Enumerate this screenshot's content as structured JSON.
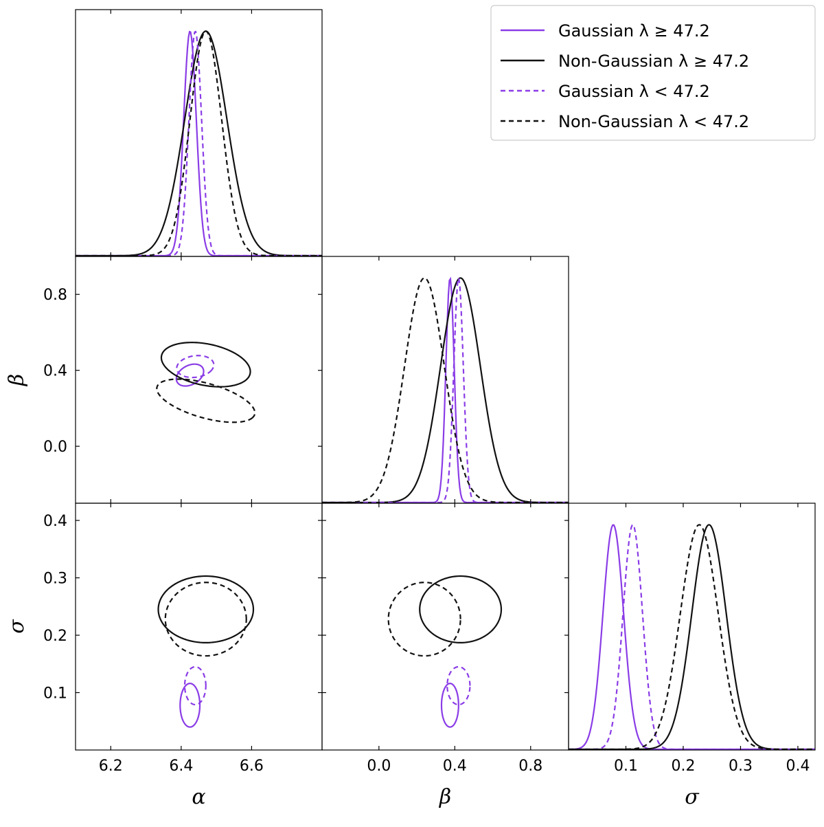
{
  "chart_data": {
    "type": "corner",
    "parameters": [
      {
        "key": "alpha",
        "label": "α",
        "range": [
          6.1,
          6.8
        ],
        "ticks": [
          "6.2",
          "6.4",
          "6.6"
        ],
        "tick_values": [
          6.2,
          6.4,
          6.6
        ]
      },
      {
        "key": "beta",
        "label": "β",
        "range": [
          -0.3,
          1.0
        ],
        "ticks": [
          "0.0",
          "0.4",
          "0.8"
        ],
        "tick_values": [
          0.0,
          0.4,
          0.8
        ]
      },
      {
        "key": "sigma",
        "label": "σ",
        "range": [
          0.0,
          0.43
        ],
        "ticks": [
          "0.1",
          "0.2",
          "0.3",
          "0.4"
        ],
        "tick_values": [
          0.1,
          0.2,
          0.3,
          0.4
        ]
      }
    ],
    "legend": {
      "placement": "top-right",
      "entries": [
        {
          "label": "Gaussian λ  ≥  47.2",
          "color": "#8a3ce6",
          "dash": "solid"
        },
        {
          "label": "Non-Gaussian λ  ≥  47.2",
          "color": "#111111",
          "dash": "solid"
        },
        {
          "label": "Gaussian λ < 47.2",
          "color": "#8a3ce6",
          "dash": "dashed"
        },
        {
          "label": "Non-Gaussian λ < 47.2",
          "color": "#111111",
          "dash": "dashed"
        }
      ]
    },
    "series": [
      {
        "id": "g-high",
        "color": "#8a3ce6",
        "dash": "solid",
        "mean": {
          "alpha": 6.425,
          "beta": 0.375,
          "sigma": 0.078
        },
        "sd": {
          "alpha": 0.018,
          "beta": 0.022,
          "sigma": 0.018
        },
        "contours": {
          "alpha-beta": {
            "rx": 0.035,
            "ry": 0.06,
            "rot": -20
          },
          "alpha-sigma": {
            "rx": 0.028,
            "ry": 0.038,
            "rot": 0
          },
          "beta-sigma": {
            "rx": 0.045,
            "ry": 0.038,
            "rot": 0
          }
        }
      },
      {
        "id": "ng-high",
        "color": "#111111",
        "dash": "solid",
        "mean": {
          "alpha": 6.47,
          "beta": 0.43,
          "sigma": 0.245
        },
        "sd": {
          "alpha": 0.06,
          "beta": 0.105,
          "sigma": 0.03
        },
        "contours": {
          "alpha-beta": {
            "rx": 0.14,
            "ry": 0.1,
            "rot": -38
          },
          "alpha-sigma": {
            "rx": 0.135,
            "ry": 0.058,
            "rot": 0
          },
          "beta-sigma": {
            "rx": 0.215,
            "ry": 0.058,
            "rot": 0
          }
        }
      },
      {
        "id": "g-low",
        "color": "#8a3ce6",
        "dash": "dashed",
        "mean": {
          "alpha": 6.44,
          "beta": 0.42,
          "sigma": 0.112
        },
        "sd": {
          "alpha": 0.018,
          "beta": 0.025,
          "sigma": 0.017
        },
        "contours": {
          "alpha-beta": {
            "rx": 0.05,
            "ry": 0.06,
            "rot": -30
          },
          "alpha-sigma": {
            "rx": 0.03,
            "ry": 0.033,
            "rot": 0
          },
          "beta-sigma": {
            "rx": 0.06,
            "ry": 0.033,
            "rot": 0
          }
        }
      },
      {
        "id": "ng-low",
        "color": "#111111",
        "dash": "dashed",
        "mean": {
          "alpha": 6.47,
          "beta": 0.24,
          "sigma": 0.228
        },
        "sd": {
          "alpha": 0.045,
          "beta": 0.105,
          "sigma": 0.033
        },
        "contours": {
          "alpha-beta": {
            "rx": 0.16,
            "ry": 0.082,
            "rot": -35
          },
          "alpha-sigma": {
            "rx": 0.115,
            "ry": 0.064,
            "rot": 0
          },
          "beta-sigma": {
            "rx": 0.19,
            "ry": 0.064,
            "rot": 0
          }
        }
      }
    ],
    "grid": false
  }
}
